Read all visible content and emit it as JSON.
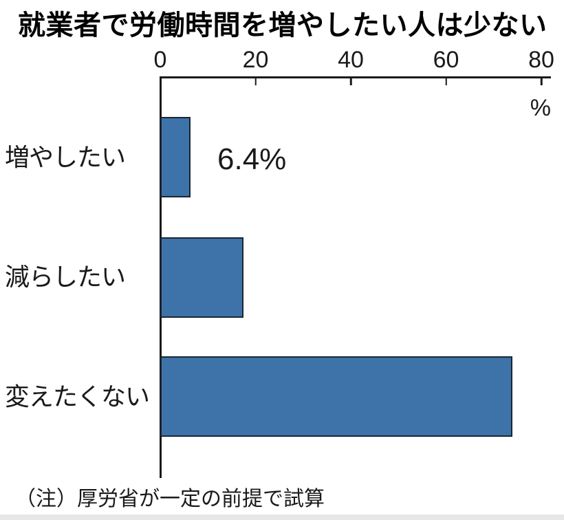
{
  "title": "就業者で労働時間を増やしたい人は少ない",
  "note": "（注）厚労省が一定の前提で試算",
  "chart_data": {
    "type": "bar",
    "orientation": "horizontal",
    "title": "就業者で労働時間を増やしたい人は少ない",
    "categories": [
      "増やしたい",
      "減らしたい",
      "変えたくない"
    ],
    "values": [
      6.4,
      17.5,
      74
    ],
    "bar_labels": [
      "6.4%",
      "",
      ""
    ],
    "unit_label": "%",
    "x_ticks": [
      0,
      20,
      40,
      60,
      80
    ],
    "xlim": [
      0,
      80
    ],
    "grid": false,
    "legend": false,
    "annotation_note": "（注）厚労省が一定の前提で試算",
    "colors": {
      "bar_fill": "#3D73A8",
      "bar_border": "#1A2633",
      "axis": "#1A1A1A",
      "text": "#1A1A1A"
    }
  }
}
